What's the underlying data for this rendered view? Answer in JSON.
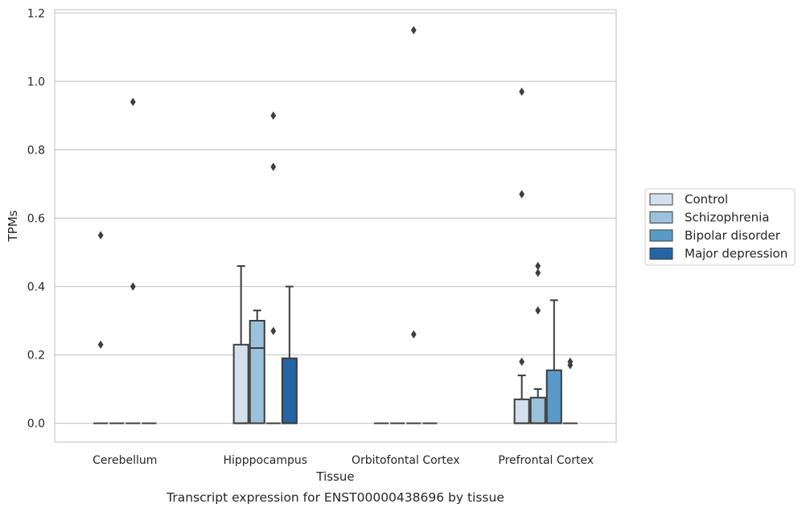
{
  "chart_data": {
    "type": "box",
    "caption": "Transcript expression for ENST00000438696 by tissue",
    "xlabel": "Tissue",
    "ylabel": "TPMs",
    "ylim": [
      -0.055,
      1.21
    ],
    "yticks": [
      0.0,
      0.2,
      0.4,
      0.6,
      0.8,
      1.0,
      1.2
    ],
    "ytick_labels": [
      "0.0",
      "0.2",
      "0.4",
      "0.6",
      "0.8",
      "1.0",
      "1.2"
    ],
    "grid": "horizontal",
    "categories": [
      "Cerebellum",
      "Hipppocampus",
      "Orbitofontal Cortex",
      "Prefrontal Cortex"
    ],
    "legend_position": "right",
    "series": [
      {
        "name": "Control",
        "color": "#d3e0ee",
        "boxes": [
          {
            "q1": 0,
            "median": 0,
            "q3": 0,
            "whisker_low": 0,
            "whisker_high": 0,
            "outliers": [
              0.23,
              0.55
            ]
          },
          {
            "q1": 0,
            "median": 0,
            "q3": 0.23,
            "whisker_low": 0,
            "whisker_high": 0.46,
            "outliers": []
          },
          {
            "q1": 0,
            "median": 0,
            "q3": 0,
            "whisker_low": 0,
            "whisker_high": 0,
            "outliers": []
          },
          {
            "q1": 0,
            "median": 0,
            "q3": 0.07,
            "whisker_low": 0,
            "whisker_high": 0.14,
            "outliers": [
              0.18,
              0.67,
              0.97
            ]
          }
        ]
      },
      {
        "name": "Schizophrenia",
        "color": "#9ac2dc",
        "boxes": [
          {
            "q1": 0,
            "median": 0,
            "q3": 0,
            "whisker_low": 0,
            "whisker_high": 0,
            "outliers": []
          },
          {
            "q1": 0,
            "median": 0.22,
            "q3": 0.3,
            "whisker_low": 0,
            "whisker_high": 0.33,
            "outliers": []
          },
          {
            "q1": 0,
            "median": 0,
            "q3": 0,
            "whisker_low": 0,
            "whisker_high": 0,
            "outliers": []
          },
          {
            "q1": 0,
            "median": 0,
            "q3": 0.075,
            "whisker_low": 0,
            "whisker_high": 0.1,
            "outliers": [
              0.33,
              0.44,
              0.46
            ]
          }
        ]
      },
      {
        "name": "Bipolar disorder",
        "color": "#5a9ac8",
        "boxes": [
          {
            "q1": 0,
            "median": 0,
            "q3": 0,
            "whisker_low": 0,
            "whisker_high": 0,
            "outliers": [
              0.4,
              0.94
            ]
          },
          {
            "q1": 0,
            "median": 0,
            "q3": 0,
            "whisker_low": 0,
            "whisker_high": 0,
            "outliers": [
              0.27,
              0.75,
              0.9
            ]
          },
          {
            "q1": 0,
            "median": 0,
            "q3": 0,
            "whisker_low": 0,
            "whisker_high": 0,
            "outliers": [
              0.26,
              1.15
            ]
          },
          {
            "q1": 0,
            "median": 0,
            "q3": 0.155,
            "whisker_low": 0,
            "whisker_high": 0.36,
            "outliers": []
          }
        ]
      },
      {
        "name": "Major depression",
        "color": "#2565a5",
        "boxes": [
          {
            "q1": 0,
            "median": 0,
            "q3": 0,
            "whisker_low": 0,
            "whisker_high": 0,
            "outliers": []
          },
          {
            "q1": 0,
            "median": 0,
            "q3": 0.19,
            "whisker_low": 0,
            "whisker_high": 0.4,
            "outliers": []
          },
          {
            "q1": 0,
            "median": 0,
            "q3": 0,
            "whisker_low": 0,
            "whisker_high": 0,
            "outliers": []
          },
          {
            "q1": 0,
            "median": 0,
            "q3": 0,
            "whisker_low": 0,
            "whisker_high": 0,
            "outliers": [
              0.17,
              0.18
            ]
          }
        ]
      }
    ]
  }
}
